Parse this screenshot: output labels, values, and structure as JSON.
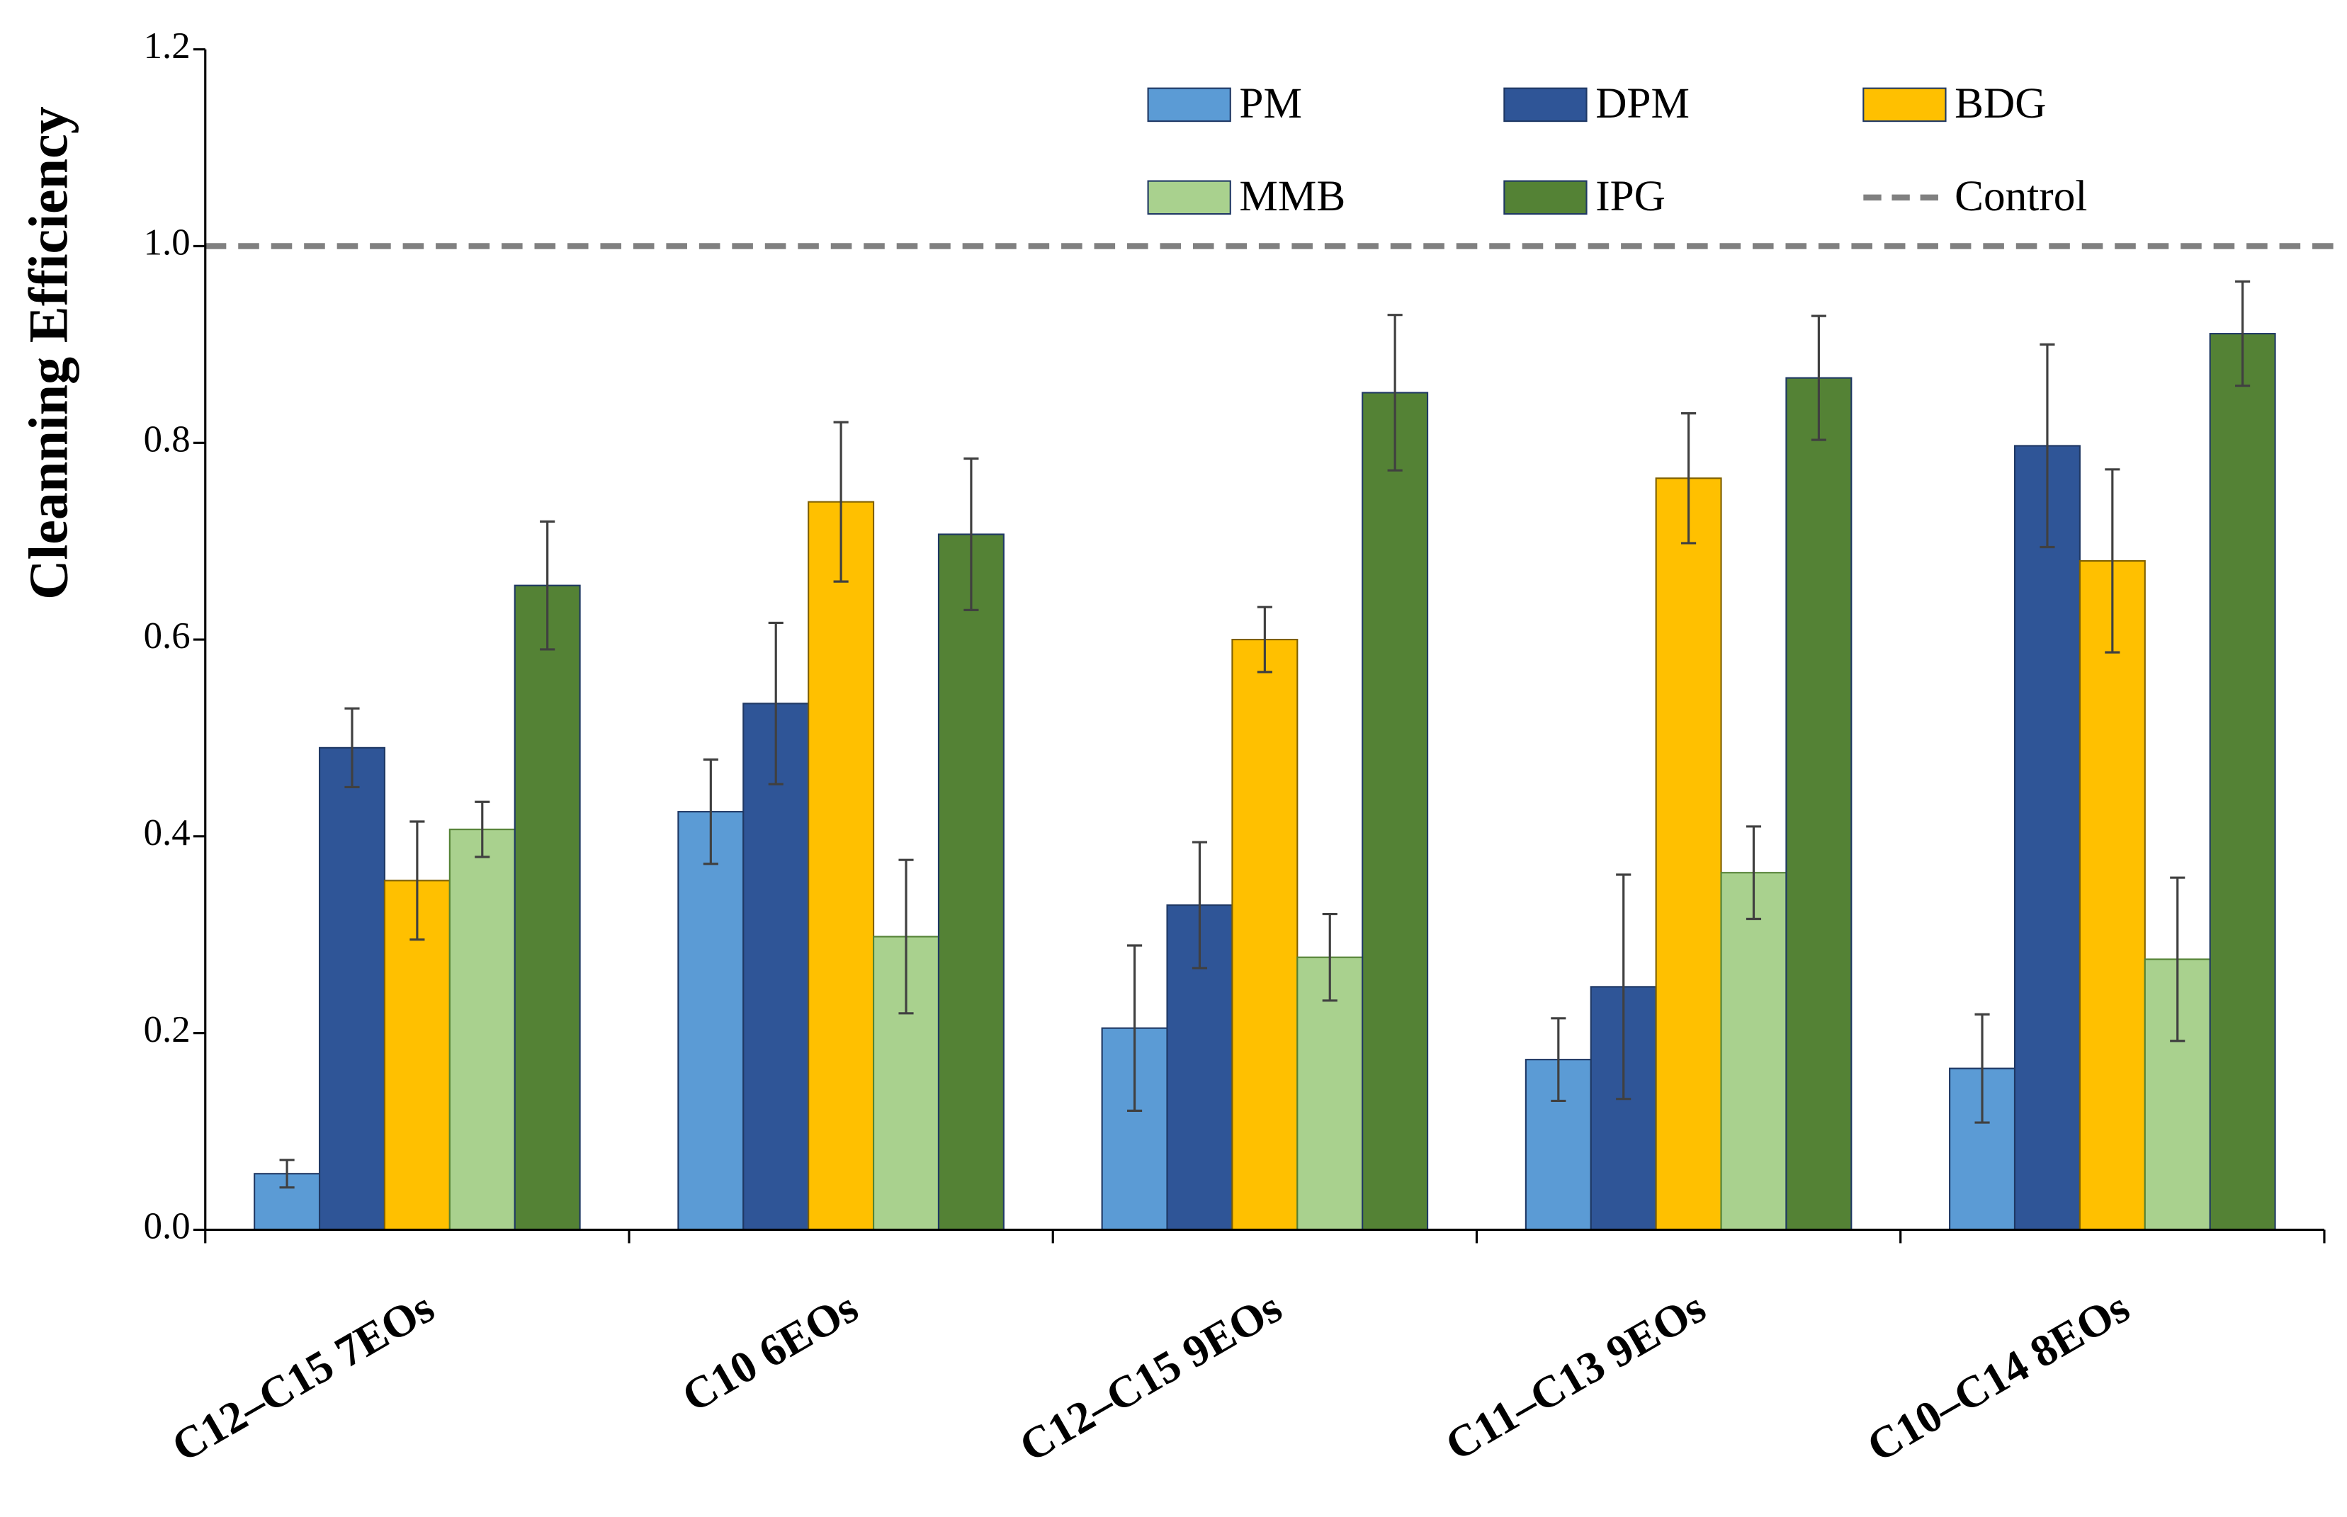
{
  "chart_data": {
    "type": "bar",
    "ylabel": "Cleanning Efficiency",
    "categories": [
      "C12–C15 7EOs",
      "C10 6EOs",
      "C12–C15 9EOs",
      "C11–C13 9EOs",
      "C10–C14 8EOs"
    ],
    "series": [
      {
        "name": "PM",
        "color": "#5b9bd5",
        "values": [
          0.057,
          0.425,
          0.205,
          0.173,
          0.164
        ],
        "errors": [
          0.014,
          0.053,
          0.084,
          0.042,
          0.055
        ]
      },
      {
        "name": "DPM",
        "color": "#2f5597",
        "values": [
          0.49,
          0.535,
          0.33,
          0.247,
          0.797
        ],
        "errors": [
          0.04,
          0.082,
          0.064,
          0.114,
          0.103
        ]
      },
      {
        "name": "BDG",
        "color": "#ffc000",
        "values": [
          0.355,
          0.74,
          0.6,
          0.764,
          0.68
        ],
        "errors": [
          0.06,
          0.081,
          0.033,
          0.066,
          0.093
        ]
      },
      {
        "name": "MMB",
        "color": "#a9d18e",
        "values": [
          0.407,
          0.298,
          0.277,
          0.363,
          0.275
        ],
        "errors": [
          0.028,
          0.078,
          0.044,
          0.047,
          0.083
        ]
      },
      {
        "name": "IPG",
        "color": "#548235",
        "values": [
          0.655,
          0.707,
          0.851,
          0.866,
          0.911
        ],
        "errors": [
          0.065,
          0.077,
          0.079,
          0.063,
          0.053
        ]
      }
    ],
    "reference_lines": [
      {
        "name": "Control",
        "value": 1,
        "color": "#808080"
      }
    ],
    "ylim": [
      0,
      1.2
    ],
    "yticks": [
      {
        "value": 0,
        "label": "0.0"
      },
      0.2,
      0.4,
      0.6,
      0.8,
      {
        "value": 1,
        "label": "1.0"
      },
      1.2
    ]
  }
}
